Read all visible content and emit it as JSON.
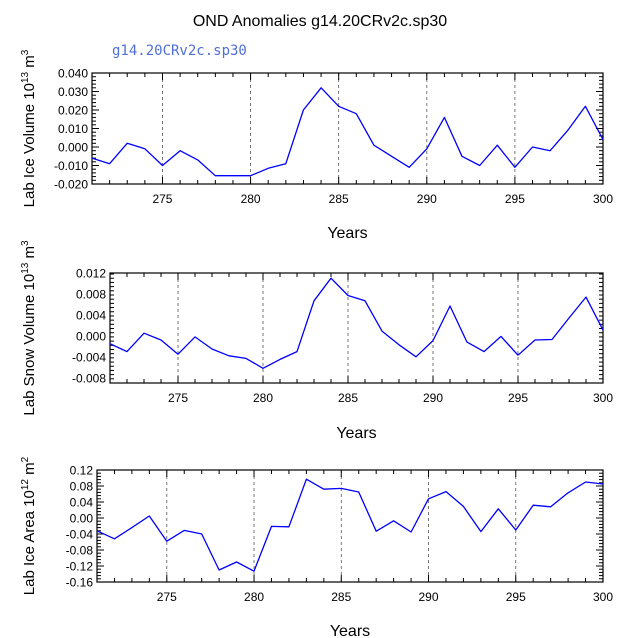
{
  "title": "OND Anomalies g14.20CRv2c.sp30",
  "case_label": "g14.20CRv2c.sp30",
  "colors": {
    "line": "#0000ff",
    "case_label": "#4f6fd8",
    "axis": "#000000"
  },
  "chart_data": [
    {
      "type": "line",
      "ylabel": "Lab Ice Volume 10",
      "ylabel_exp": "13",
      "ylabel_unit": "m",
      "ylabel_unit_exp": "3",
      "xlabel": "Years",
      "xlim": [
        271,
        300
      ],
      "ylim": [
        -0.02,
        0.04
      ],
      "xticks": [
        275,
        280,
        285,
        290,
        295,
        300
      ],
      "xtick_labels": [
        "275",
        "280",
        "285",
        "290",
        "295",
        "300"
      ],
      "yticks": [
        -0.02,
        -0.01,
        0.0,
        0.01,
        0.02,
        0.03,
        0.04
      ],
      "ytick_labels": [
        "-0.020",
        "-0.010",
        "0.000",
        "0.010",
        "0.020",
        "0.030",
        "0.040"
      ],
      "series": [
        {
          "x": [
            271,
            272,
            273,
            274,
            275,
            276,
            277,
            278,
            279,
            280,
            281,
            282,
            283,
            284,
            285,
            286,
            287,
            288,
            289,
            290,
            291,
            292,
            293,
            294,
            295,
            296,
            297,
            298,
            299,
            300
          ],
          "values": [
            -0.006,
            -0.009,
            0.002,
            -0.001,
            -0.01,
            -0.002,
            -0.007,
            -0.0155,
            -0.0155,
            -0.0155,
            -0.0115,
            -0.009,
            0.02,
            0.032,
            0.022,
            0.018,
            0.001,
            -0.005,
            -0.011,
            -0.001,
            0.016,
            -0.005,
            -0.01,
            0.001,
            -0.011,
            0.0,
            -0.002,
            0.009,
            0.022,
            0.004
          ]
        }
      ]
    },
    {
      "type": "line",
      "ylabel": "Lab Snow Volume 10",
      "ylabel_exp": "13",
      "ylabel_unit": "m",
      "ylabel_unit_exp": "3",
      "xlabel": "Years",
      "xlim": [
        271,
        300
      ],
      "ylim": [
        -0.009,
        0.012
      ],
      "xticks": [
        275,
        280,
        285,
        290,
        295,
        300
      ],
      "xtick_labels": [
        "275",
        "280",
        "285",
        "290",
        "295",
        "300"
      ],
      "yticks": [
        -0.008,
        -0.004,
        0.0,
        0.004,
        0.008,
        0.012
      ],
      "ytick_labels": [
        "-0.008",
        "-0.004",
        "0.000",
        "0.004",
        "0.008",
        "0.012"
      ],
      "series": [
        {
          "x": [
            271,
            272,
            273,
            274,
            275,
            276,
            277,
            278,
            279,
            280,
            281,
            282,
            283,
            284,
            285,
            286,
            287,
            288,
            289,
            290,
            291,
            292,
            293,
            294,
            295,
            296,
            297,
            298,
            299,
            300
          ],
          "values": [
            -0.0015,
            -0.003,
            0.0005,
            -0.0008,
            -0.0035,
            -0.0002,
            -0.0025,
            -0.0038,
            -0.0043,
            -0.0062,
            -0.0045,
            -0.003,
            0.0067,
            0.011,
            0.0077,
            0.0067,
            0.0009,
            -0.0017,
            -0.004,
            -0.0009,
            0.0057,
            -0.0012,
            -0.003,
            -0.0001,
            -0.0037,
            -0.0008,
            -0.0007,
            0.0034,
            0.0074,
            0.0011
          ]
        }
      ]
    },
    {
      "type": "line",
      "ylabel": "Lab Ice Area 10",
      "ylabel_exp": "12",
      "ylabel_unit": "m",
      "ylabel_unit_exp": "2",
      "xlabel": "Years",
      "xlim": [
        271,
        300
      ],
      "ylim": [
        -0.16,
        0.12
      ],
      "xticks": [
        275,
        280,
        285,
        290,
        295,
        300
      ],
      "xtick_labels": [
        "275",
        "280",
        "285",
        "290",
        "295",
        "300"
      ],
      "yticks": [
        -0.16,
        -0.12,
        -0.08,
        -0.04,
        0.0,
        0.04,
        0.08,
        0.12
      ],
      "ytick_labels": [
        "-0.16",
        "-0.12",
        "-0.08",
        "-0.04",
        "0.00",
        "0.04",
        "0.08",
        "0.12"
      ],
      "series": [
        {
          "x": [
            271,
            272,
            273,
            274,
            275,
            276,
            277,
            278,
            279,
            280,
            281,
            282,
            283,
            284,
            285,
            286,
            287,
            288,
            289,
            290,
            291,
            292,
            293,
            294,
            295,
            296,
            297,
            298,
            299,
            300
          ],
          "values": [
            -0.032,
            -0.052,
            -0.024,
            0.005,
            -0.058,
            -0.031,
            -0.04,
            -0.13,
            -0.11,
            -0.133,
            -0.021,
            -0.022,
            0.097,
            0.072,
            0.074,
            0.065,
            -0.033,
            -0.007,
            -0.035,
            0.048,
            0.066,
            0.029,
            -0.034,
            0.023,
            -0.03,
            0.032,
            0.028,
            0.063,
            0.09,
            0.085
          ]
        }
      ]
    }
  ]
}
